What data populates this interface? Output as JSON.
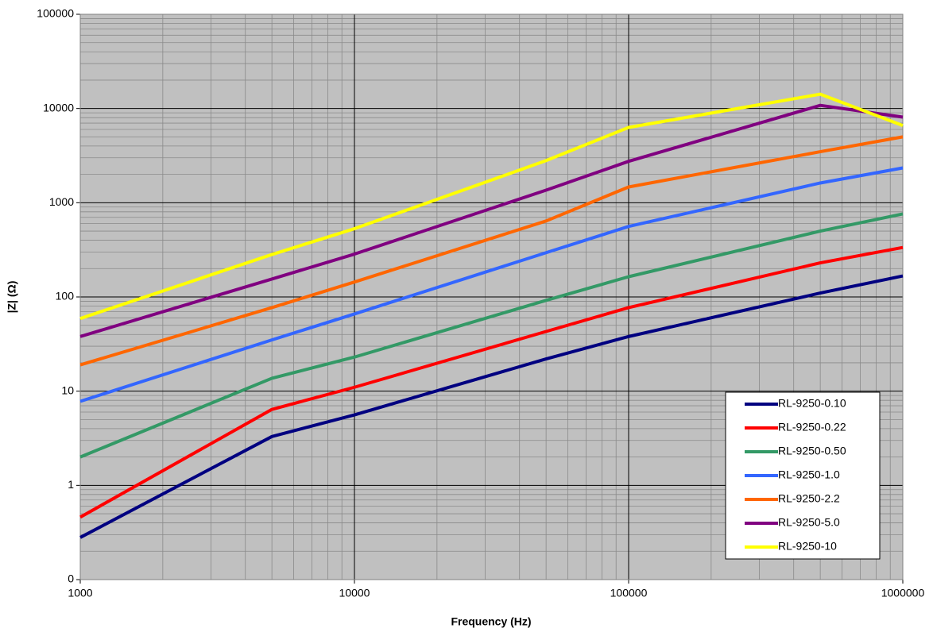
{
  "chart_data": {
    "type": "line",
    "xlabel": "Frequency (Hz)",
    "ylabel": "|Z| (Ω)",
    "x": [
      1000,
      5000,
      10000,
      50000,
      100000,
      500000,
      1000000
    ],
    "xlim": [
      1000,
      1000000
    ],
    "xticks": [
      1000,
      10000,
      100000,
      1000000
    ],
    "ylim": [
      0.1,
      100000
    ],
    "yticks": [
      {
        "value": 0.1,
        "label": "0"
      },
      1,
      10,
      100,
      1000,
      10000,
      100000
    ],
    "xscale": "log",
    "yscale": "log",
    "grid": true,
    "minor_grid": true,
    "legend": "lower right",
    "background": "#c0c0c0",
    "series": [
      {
        "name": "RL-9250-0.10",
        "color": "#000080",
        "values": [
          0.28,
          3.3,
          5.6,
          22,
          38,
          110,
          167
        ]
      },
      {
        "name": "RL-9250-0.22",
        "color": "#ff0000",
        "values": [
          0.46,
          6.4,
          11,
          43,
          77,
          230,
          335
        ]
      },
      {
        "name": "RL-9250-0.50",
        "color": "#339966",
        "values": [
          2.0,
          13.7,
          23,
          92,
          164,
          500,
          760
        ]
      },
      {
        "name": "RL-9250-1.0",
        "color": "#3366ff",
        "values": [
          7.8,
          35,
          66,
          295,
          560,
          1620,
          2340
        ]
      },
      {
        "name": "RL-9250-2.2",
        "color": "#ff6600",
        "values": [
          19,
          77,
          144,
          640,
          1470,
          3480,
          5000
        ]
      },
      {
        "name": "RL-9250-5.0",
        "color": "#800080",
        "values": [
          38,
          155,
          285,
          1360,
          2750,
          10800,
          8100
        ]
      },
      {
        "name": "RL-9250-10",
        "color": "#ffff00",
        "values": [
          59,
          282,
          530,
          2800,
          6300,
          14200,
          6600
        ]
      }
    ]
  }
}
